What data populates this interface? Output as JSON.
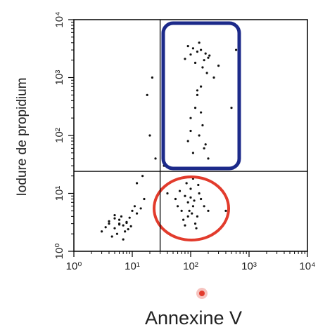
{
  "chart_data": {
    "type": "scatter",
    "xlabel": "Annexine V",
    "ylabel": "Iodure de propidium",
    "log_x": true,
    "log_y": true,
    "color": "#111111",
    "xlim": [
      1,
      10000
    ],
    "ylim": [
      1,
      10000
    ],
    "xticks": [
      {
        "value": 1,
        "label": "10⁰"
      },
      {
        "value": 10,
        "label": "10¹"
      },
      {
        "value": 100,
        "label": "10²"
      },
      {
        "value": 1000,
        "label": "10³"
      },
      {
        "value": 10000,
        "label": "10⁴"
      }
    ],
    "yticks": [
      {
        "value": 1,
        "label": "10⁰"
      },
      {
        "value": 10,
        "label": "10¹"
      },
      {
        "value": 100,
        "label": "10²"
      },
      {
        "value": 1000,
        "label": "10³"
      },
      {
        "value": 10000,
        "label": "10⁴"
      }
    ],
    "gates": {
      "x": 30,
      "y": 24
    },
    "x": [
      4,
      5,
      6,
      7,
      8,
      5.5,
      6.5,
      3.5,
      9,
      10,
      4.5,
      7.5,
      12,
      6,
      5,
      8.5,
      3,
      11,
      7,
      6,
      14,
      4,
      9.5,
      5,
      8,
      70,
      90,
      110,
      130,
      80,
      100,
      120,
      60,
      150,
      95,
      85,
      105,
      140,
      75,
      115,
      170,
      65,
      125,
      90,
      100,
      200,
      55,
      135,
      110,
      80,
      100,
      150,
      200,
      130,
      170,
      90,
      120,
      180,
      140,
      160,
      110,
      210,
      80,
      190,
      150,
      130,
      250,
      120,
      100,
      160,
      140,
      90,
      170,
      110,
      200,
      130,
      150,
      100,
      180,
      300,
      15,
      20,
      18,
      25,
      12,
      22,
      40,
      400,
      500,
      35,
      16,
      600
    ],
    "values": [
      3,
      2.5,
      3.5,
      2.8,
      3.2,
      2,
      4,
      2.6,
      3.8,
      5,
      1.8,
      2.2,
      4.5,
      3,
      3.7,
      2.4,
      2.2,
      6,
      1.6,
      2.9,
      5.5,
      3.3,
      2.7,
      4.2,
      3.1,
      5,
      7,
      6,
      4,
      9,
      12,
      3,
      6,
      8,
      5,
      15,
      4.5,
      10,
      3.5,
      7.5,
      6,
      11,
      2.5,
      4,
      8.5,
      5,
      8,
      14,
      18,
      2.8,
      2500,
      3000,
      2200,
      2800,
      2000,
      3500,
      1800,
      2600,
      4000,
      1500,
      3200,
      2400,
      2100,
      1200,
      700,
      500,
      1000,
      300,
      200,
      150,
      100,
      80,
      60,
      50,
      40,
      600,
      250,
      120,
      70,
      1600,
      20,
      100,
      500,
      40,
      15,
      1000,
      10,
      5,
      300,
      30,
      8,
      3000
    ]
  }
}
